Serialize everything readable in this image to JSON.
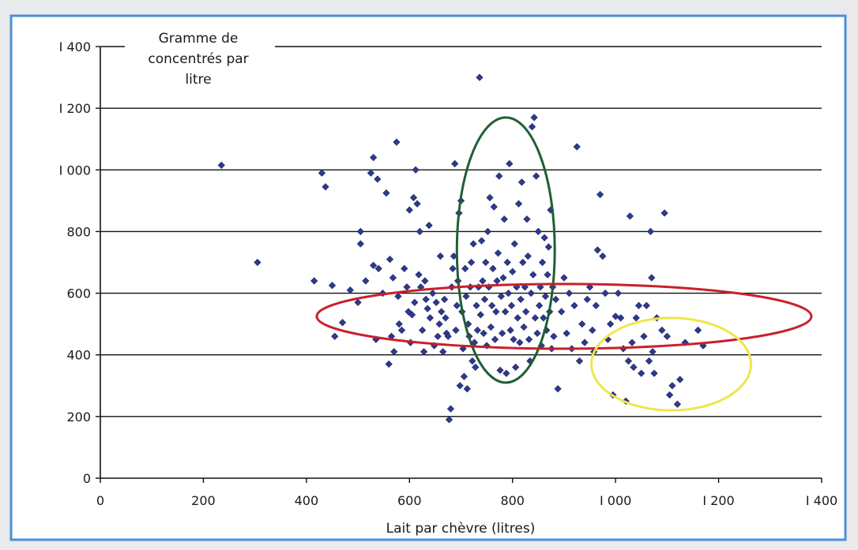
{
  "chart_data": {
    "type": "scatter",
    "ylabel_lines": [
      "Gramme de",
      "concentrés par",
      "litre"
    ],
    "xlabel": "Lait par chèvre (litres)",
    "xlim": [
      0,
      1400
    ],
    "ylim": [
      0,
      1400
    ],
    "xticks": [
      0,
      200,
      400,
      600,
      800,
      1000,
      1200,
      1400
    ],
    "xtick_labels": [
      "0",
      "200",
      "400",
      "600",
      "800",
      "I 000",
      "I 200",
      "I 400"
    ],
    "yticks": [
      0,
      200,
      400,
      600,
      800,
      1000,
      1200,
      1400
    ],
    "ytick_labels": [
      "0",
      "200",
      "400",
      "600",
      "800",
      "I 000",
      "I 200",
      "I 400"
    ],
    "grid": "horizontal",
    "marker_color": "#2e3a8c",
    "points": [
      [
        235,
        1015
      ],
      [
        305,
        700
      ],
      [
        415,
        640
      ],
      [
        430,
        990
      ],
      [
        437,
        945
      ],
      [
        450,
        625
      ],
      [
        455,
        460
      ],
      [
        470,
        505
      ],
      [
        485,
        610
      ],
      [
        500,
        570
      ],
      [
        505,
        800
      ],
      [
        505,
        760
      ],
      [
        515,
        640
      ],
      [
        525,
        990
      ],
      [
        530,
        1040
      ],
      [
        530,
        690
      ],
      [
        535,
        450
      ],
      [
        538,
        970
      ],
      [
        540,
        680
      ],
      [
        548,
        600
      ],
      [
        555,
        925
      ],
      [
        560,
        370
      ],
      [
        562,
        710
      ],
      [
        565,
        460
      ],
      [
        568,
        650
      ],
      [
        570,
        410
      ],
      [
        575,
        1090
      ],
      [
        578,
        590
      ],
      [
        580,
        500
      ],
      [
        585,
        480
      ],
      [
        590,
        680
      ],
      [
        595,
        620
      ],
      [
        598,
        540
      ],
      [
        600,
        870
      ],
      [
        602,
        440
      ],
      [
        605,
        530
      ],
      [
        608,
        910
      ],
      [
        610,
        570
      ],
      [
        612,
        1000
      ],
      [
        615,
        890
      ],
      [
        618,
        660
      ],
      [
        620,
        800
      ],
      [
        622,
        620
      ],
      [
        625,
        480
      ],
      [
        628,
        410
      ],
      [
        630,
        640
      ],
      [
        632,
        580
      ],
      [
        635,
        550
      ],
      [
        638,
        820
      ],
      [
        640,
        520
      ],
      [
        645,
        600
      ],
      [
        648,
        430
      ],
      [
        652,
        570
      ],
      [
        655,
        460
      ],
      [
        658,
        500
      ],
      [
        660,
        720
      ],
      [
        662,
        540
      ],
      [
        665,
        410
      ],
      [
        668,
        580
      ],
      [
        670,
        520
      ],
      [
        672,
        470
      ],
      [
        675,
        460
      ],
      [
        677,
        190
      ],
      [
        680,
        225
      ],
      [
        682,
        620
      ],
      [
        684,
        680
      ],
      [
        686,
        720
      ],
      [
        688,
        1020
      ],
      [
        690,
        480
      ],
      [
        692,
        560
      ],
      [
        694,
        640
      ],
      [
        696,
        860
      ],
      [
        698,
        300
      ],
      [
        700,
        900
      ],
      [
        702,
        540
      ],
      [
        704,
        420
      ],
      [
        706,
        330
      ],
      [
        708,
        680
      ],
      [
        710,
        590
      ],
      [
        712,
        290
      ],
      [
        714,
        500
      ],
      [
        716,
        460
      ],
      [
        718,
        620
      ],
      [
        720,
        700
      ],
      [
        722,
        380
      ],
      [
        724,
        760
      ],
      [
        726,
        440
      ],
      [
        728,
        360
      ],
      [
        730,
        560
      ],
      [
        732,
        480
      ],
      [
        734,
        620
      ],
      [
        736,
        1300
      ],
      [
        738,
        530
      ],
      [
        740,
        770
      ],
      [
        742,
        640
      ],
      [
        744,
        470
      ],
      [
        746,
        580
      ],
      [
        748,
        700
      ],
      [
        750,
        430
      ],
      [
        752,
        800
      ],
      [
        754,
        620
      ],
      [
        756,
        910
      ],
      [
        758,
        490
      ],
      [
        760,
        560
      ],
      [
        762,
        680
      ],
      [
        764,
        880
      ],
      [
        766,
        450
      ],
      [
        768,
        540
      ],
      [
        770,
        640
      ],
      [
        772,
        730
      ],
      [
        774,
        980
      ],
      [
        776,
        350
      ],
      [
        778,
        590
      ],
      [
        780,
        470
      ],
      [
        782,
        650
      ],
      [
        784,
        840
      ],
      [
        786,
        540
      ],
      [
        788,
        340
      ],
      [
        790,
        700
      ],
      [
        792,
        600
      ],
      [
        794,
        1020
      ],
      [
        796,
        480
      ],
      [
        798,
        560
      ],
      [
        800,
        670
      ],
      [
        802,
        450
      ],
      [
        804,
        760
      ],
      [
        806,
        360
      ],
      [
        808,
        620
      ],
      [
        810,
        520
      ],
      [
        812,
        890
      ],
      [
        814,
        440
      ],
      [
        816,
        580
      ],
      [
        818,
        960
      ],
      [
        820,
        700
      ],
      [
        822,
        490
      ],
      [
        824,
        620
      ],
      [
        826,
        540
      ],
      [
        828,
        840
      ],
      [
        830,
        720
      ],
      [
        832,
        450
      ],
      [
        834,
        380
      ],
      [
        836,
        600
      ],
      [
        838,
        1140
      ],
      [
        840,
        660
      ],
      [
        842,
        1170
      ],
      [
        844,
        520
      ],
      [
        846,
        980
      ],
      [
        848,
        470
      ],
      [
        850,
        800
      ],
      [
        852,
        560
      ],
      [
        854,
        620
      ],
      [
        856,
        430
      ],
      [
        858,
        700
      ],
      [
        860,
        520
      ],
      [
        862,
        780
      ],
      [
        864,
        590
      ],
      [
        866,
        480
      ],
      [
        868,
        660
      ],
      [
        870,
        750
      ],
      [
        872,
        540
      ],
      [
        874,
        870
      ],
      [
        876,
        420
      ],
      [
        878,
        620
      ],
      [
        880,
        460
      ],
      [
        884,
        580
      ],
      [
        888,
        290
      ],
      [
        895,
        540
      ],
      [
        900,
        650
      ],
      [
        905,
        470
      ],
      [
        910,
        600
      ],
      [
        915,
        420
      ],
      [
        920,
        560
      ],
      [
        925,
        1075
      ],
      [
        930,
        380
      ],
      [
        935,
        500
      ],
      [
        940,
        440
      ],
      [
        945,
        580
      ],
      [
        950,
        620
      ],
      [
        955,
        480
      ],
      [
        958,
        410
      ],
      [
        962,
        560
      ],
      [
        965,
        740
      ],
      [
        970,
        920
      ],
      [
        975,
        720
      ],
      [
        980,
        600
      ],
      [
        985,
        450
      ],
      [
        990,
        500
      ],
      [
        995,
        270
      ],
      [
        1000,
        525
      ],
      [
        1005,
        600
      ],
      [
        1010,
        520
      ],
      [
        1015,
        420
      ],
      [
        1020,
        250
      ],
      [
        1025,
        380
      ],
      [
        1028,
        850
      ],
      [
        1032,
        440
      ],
      [
        1035,
        360
      ],
      [
        1040,
        520
      ],
      [
        1045,
        560
      ],
      [
        1050,
        340
      ],
      [
        1055,
        460
      ],
      [
        1060,
        560
      ],
      [
        1065,
        380
      ],
      [
        1068,
        800
      ],
      [
        1070,
        650
      ],
      [
        1072,
        410
      ],
      [
        1075,
        340
      ],
      [
        1080,
        520
      ],
      [
        1090,
        480
      ],
      [
        1095,
        860
      ],
      [
        1100,
        460
      ],
      [
        1105,
        270
      ],
      [
        1110,
        300
      ],
      [
        1120,
        240
      ],
      [
        1125,
        320
      ],
      [
        1135,
        440
      ],
      [
        1160,
        480
      ],
      [
        1170,
        430
      ]
    ],
    "ellipses": [
      {
        "color": "#1f5f33",
        "cx": 787,
        "cy": 740,
        "rx": 95,
        "ry": 430
      },
      {
        "color": "#c8202a",
        "cx": 900,
        "cy": 525,
        "rx": 480,
        "ry": 105
      },
      {
        "color": "#f0e54a",
        "cx": 1108,
        "cy": 370,
        "rx": 155,
        "ry": 150
      }
    ]
  }
}
